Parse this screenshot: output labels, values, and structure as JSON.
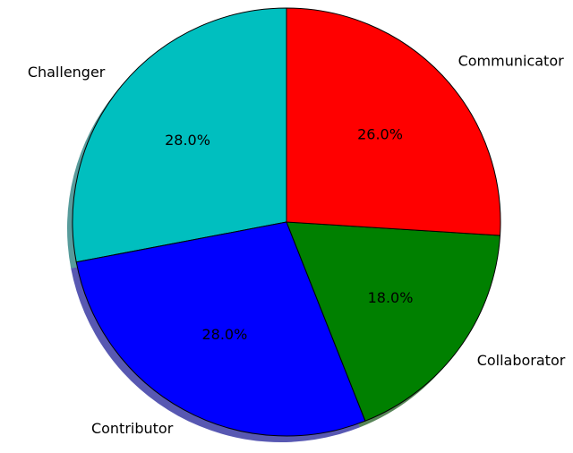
{
  "chart_data": {
    "type": "pie",
    "categories": [
      "Challenger",
      "Contributor",
      "Collaborator",
      "Communicator"
    ],
    "values": [
      28.0,
      28.0,
      18.0,
      26.0
    ],
    "percent_labels": [
      "28.0%",
      "28.0%",
      "18.0%",
      "26.0%"
    ],
    "colors": [
      "#00bfbf",
      "#0000ff",
      "#008000",
      "#ff0000"
    ],
    "start_angle_deg": 90,
    "direction": "counterclockwise",
    "shadow": true,
    "title": "",
    "legend": "none"
  }
}
